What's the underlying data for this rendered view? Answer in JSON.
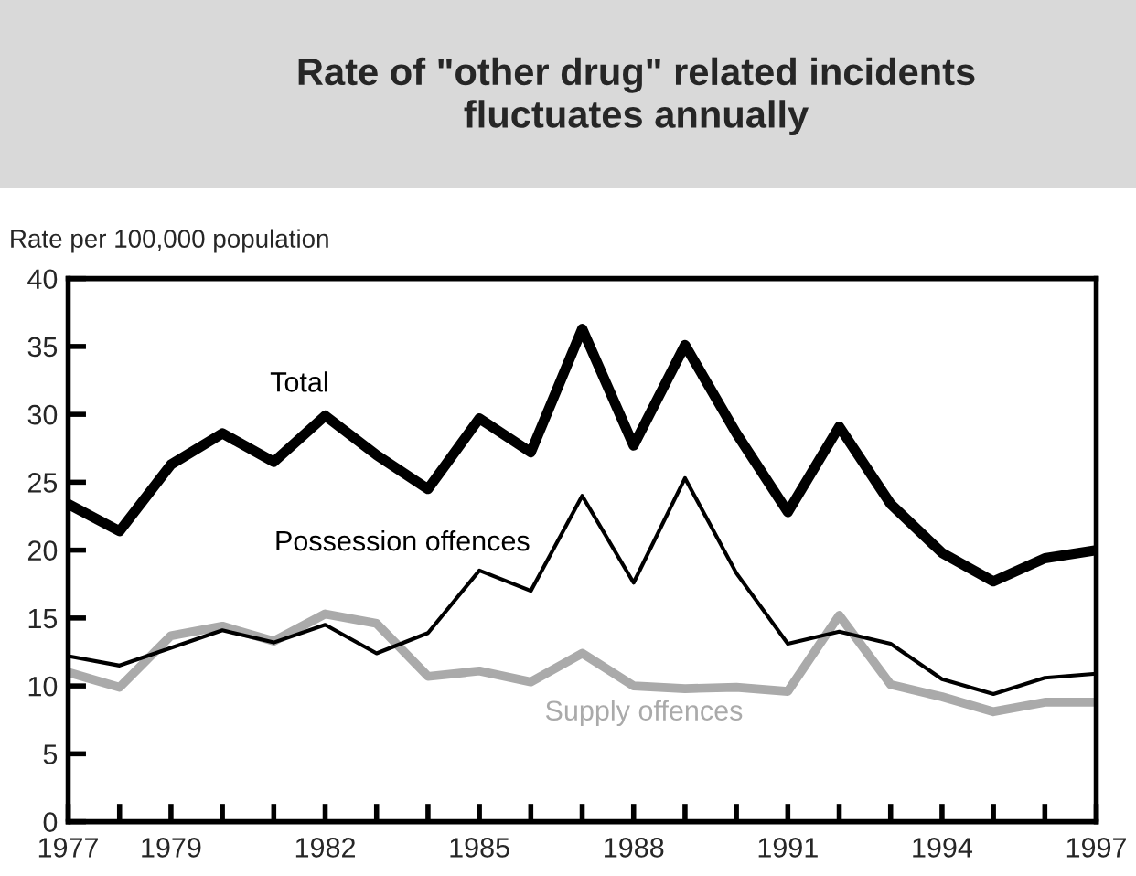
{
  "chart_data": {
    "type": "line",
    "title": "Rate of \"other drug\" related incidents\nfluctuates annually",
    "ylabel": "Rate per 100,000 population",
    "x": [
      1977,
      1978,
      1979,
      1980,
      1981,
      1982,
      1983,
      1984,
      1985,
      1986,
      1987,
      1988,
      1989,
      1990,
      1991,
      1992,
      1993,
      1994,
      1995,
      1996,
      1997
    ],
    "series": [
      {
        "name": "Total",
        "color": "#000000",
        "values": [
          23.4,
          21.4,
          26.3,
          28.6,
          26.5,
          29.9,
          27.0,
          24.5,
          29.7,
          27.2,
          36.3,
          27.7,
          35.1,
          28.6,
          22.8,
          29.1,
          23.4,
          19.8,
          17.7,
          19.4,
          20.0
        ]
      },
      {
        "name": "Possession offences",
        "color": "#000000",
        "values": [
          12.2,
          11.5,
          12.8,
          14.1,
          13.2,
          14.5,
          12.4,
          13.9,
          18.5,
          17.0,
          24.0,
          17.6,
          25.3,
          18.3,
          13.1,
          14.0,
          13.1,
          10.5,
          9.4,
          10.6,
          10.9
        ]
      },
      {
        "name": "Supply offences",
        "color": "#aaaaaa",
        "values": [
          11.0,
          9.9,
          13.7,
          14.4,
          13.3,
          15.3,
          14.6,
          10.7,
          11.1,
          10.3,
          12.4,
          10.0,
          9.8,
          9.9,
          9.6,
          15.2,
          10.1,
          9.2,
          8.1,
          8.8,
          8.8
        ]
      }
    ],
    "xlim": [
      1977,
      1997
    ],
    "ylim": [
      0,
      40
    ],
    "xticks": [
      1977,
      {
        "value": 1978,
        "label": null
      },
      1979,
      {
        "value": 1980,
        "label": null
      },
      {
        "value": 1981,
        "label": null
      },
      1982,
      {
        "value": 1983,
        "label": null
      },
      {
        "value": 1984,
        "label": null
      },
      1985,
      {
        "value": 1986,
        "label": null
      },
      {
        "value": 1987,
        "label": null
      },
      1988,
      {
        "value": 1989,
        "label": null
      },
      {
        "value": 1990,
        "label": null
      },
      1991,
      {
        "value": 1992,
        "label": null
      },
      {
        "value": 1993,
        "label": null
      },
      1994,
      {
        "value": 1995,
        "label": null
      },
      {
        "value": 1996,
        "label": null
      },
      1997
    ],
    "yticks": [
      0,
      5,
      10,
      15,
      20,
      25,
      30,
      35,
      40
    ],
    "grid": false,
    "legend": false,
    "marker": "none",
    "line_style": "solid"
  }
}
